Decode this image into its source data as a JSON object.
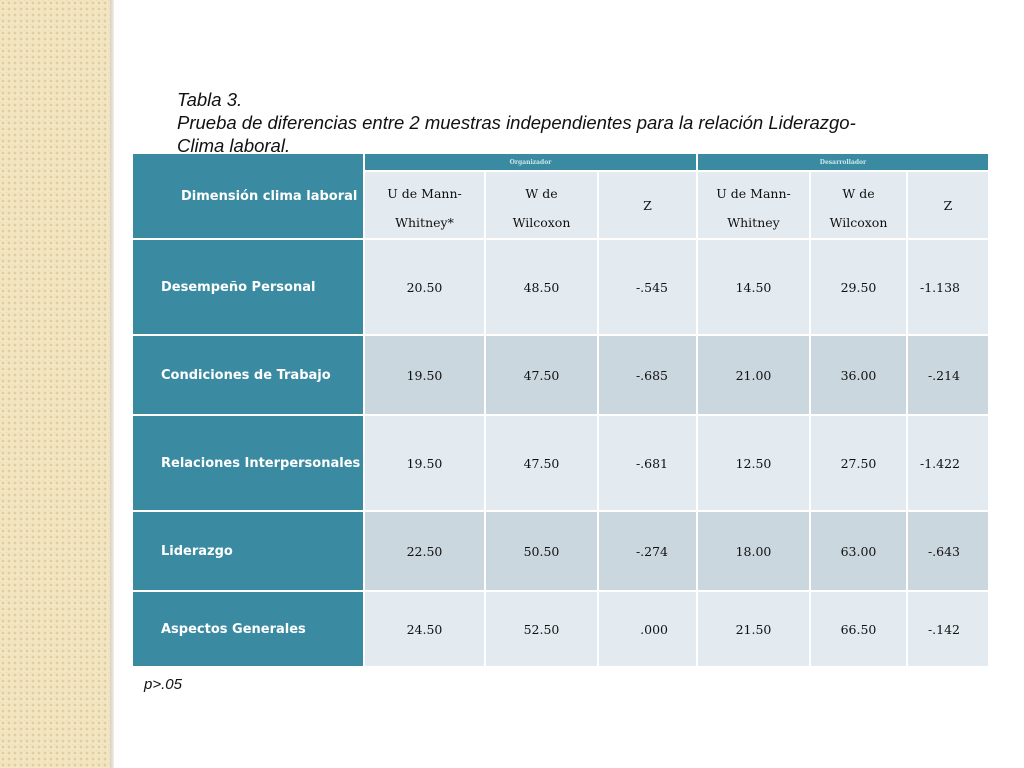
{
  "caption": {
    "table_number": "Tabla 3.",
    "title_line1": "Prueba de diferencias entre 2 muestras independientes para la relación Liderazgo-",
    "title_line2": "Clima laboral."
  },
  "table": {
    "corner_header": "Dimensión clima laboral",
    "groups": [
      "Organizador",
      "Desarrollador"
    ],
    "subheaders": [
      [
        "U de Mann-",
        "Whitney*"
      ],
      [
        "W de",
        "Wilcoxon"
      ],
      [
        "Z"
      ],
      [
        "U de Mann-",
        "Whitney"
      ],
      [
        "W de",
        "Wilcoxon"
      ],
      [
        "Z"
      ]
    ],
    "rows": [
      {
        "label": "Desempeño Personal",
        "values": [
          "20.50",
          "48.50",
          "-.545",
          "14.50",
          "29.50",
          "-1.138"
        ]
      },
      {
        "label": "Condiciones de Trabajo",
        "values": [
          "19.50",
          "47.50",
          "-.685",
          "21.00",
          "36.00",
          "-.214"
        ]
      },
      {
        "label": "Relaciones Interpersonales",
        "values": [
          "19.50",
          "47.50",
          "-.681",
          "12.50",
          "27.50",
          "-1.422"
        ]
      },
      {
        "label": "Liderazgo",
        "values": [
          "22.50",
          "50.50",
          "-.274",
          "18.00",
          "63.00",
          "-.643"
        ]
      },
      {
        "label": "Aspectos Generales",
        "values": [
          "24.50",
          "52.50",
          ".000",
          "21.50",
          "66.50",
          "-.142"
        ]
      }
    ]
  },
  "note": "p>.05",
  "colors": {
    "header_teal": "#3a8ba2",
    "row_light": "#e4ebf0",
    "row_dark": "#cbd7de"
  }
}
